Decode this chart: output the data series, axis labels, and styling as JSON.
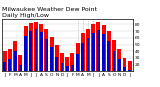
{
  "title": "Milwaukee Weather Dew Point",
  "subtitle": "Daily High/Low",
  "bar_high_color": "#ff0000",
  "bar_low_color": "#0000cc",
  "grid_color": "#cccccc",
  "background_color": "#ffffff",
  "ylim": [
    10,
    88
  ],
  "yticks": [
    20,
    30,
    40,
    50,
    60,
    70,
    80
  ],
  "x_labels": [
    "J",
    "F",
    "M",
    "A",
    "M",
    "J",
    "J",
    "A",
    "S",
    "O",
    "N",
    "D",
    "J",
    "F",
    "M",
    "A",
    "M",
    "J",
    "J",
    "A",
    "S",
    "O",
    "N",
    "D",
    "J"
  ],
  "high_values": [
    40,
    44,
    55,
    35,
    78,
    82,
    83,
    80,
    73,
    62,
    50,
    38,
    32,
    37,
    52,
    68,
    74,
    80,
    83,
    79,
    70,
    57,
    44,
    30,
    25
  ],
  "low_values": [
    24,
    28,
    40,
    20,
    63,
    70,
    73,
    69,
    59,
    46,
    32,
    22,
    18,
    20,
    36,
    52,
    60,
    67,
    72,
    66,
    56,
    40,
    28,
    16,
    12
  ],
  "dashed_indices": [
    14,
    15,
    16,
    17
  ],
  "n": 25,
  "title_fontsize": 4.5,
  "tick_fontsize": 3.2,
  "ytick_fontsize": 3.2
}
